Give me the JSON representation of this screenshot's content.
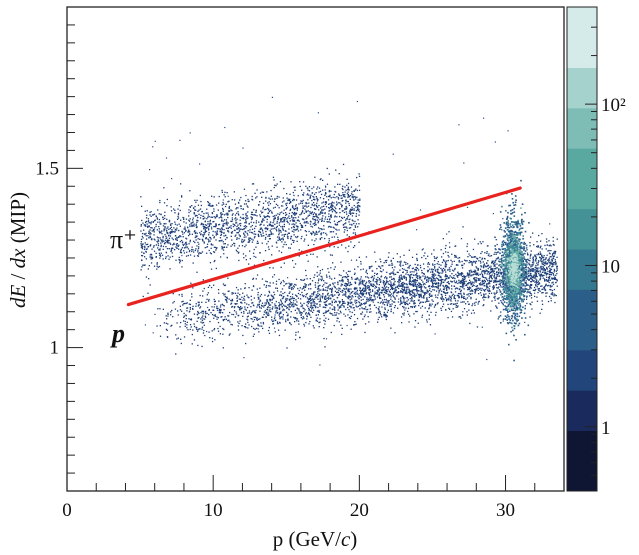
{
  "chart_data": {
    "type": "heatmap",
    "title": "",
    "xlabel_main": "p (GeV/",
    "xlabel_italic": "c",
    "xlabel_end": ")",
    "ylabel_italic_1": "dE",
    "ylabel_sep": " / ",
    "ylabel_italic_2": "dx",
    "ylabel_unit": " (MIP)",
    "xlim": [
      0,
      34
    ],
    "ylim": [
      0.6,
      1.95
    ],
    "x_ticks": [
      0,
      10,
      20,
      30
    ],
    "x_tick_labels": [
      "0",
      "10",
      "20",
      "30"
    ],
    "y_ticks": [
      1.0,
      1.5
    ],
    "y_tick_labels": [
      "1",
      "1.5"
    ],
    "colorbar": {
      "scale": "log",
      "range": [
        0.4,
        400
      ],
      "ticks": [
        1,
        10,
        100
      ],
      "tick_labels": [
        "1",
        "10",
        "10²"
      ],
      "colors": [
        "#0f1633",
        "#1a2a5c",
        "#22457c",
        "#2b5f8a",
        "#357990",
        "#449296",
        "#5aa9a1",
        "#7dbdb5",
        "#a6d2cd",
        "#d4ebea"
      ]
    },
    "annotations": [
      {
        "text": "π⁺",
        "x": 2.2,
        "y": 1.28
      },
      {
        "text": "p",
        "x": 2.2,
        "y": 0.99
      }
    ],
    "separation_line": {
      "color": "#e8231f",
      "points": [
        [
          4.2,
          1.12
        ],
        [
          31.0,
          1.445
        ]
      ]
    },
    "bands": [
      {
        "name": "",
        "x_range": [
          5.0,
          20.0
        ],
        "mean_start": 1.3,
        "mean_end": 1.39,
        "sigma": 0.045
      },
      {
        "name": "",
        "x_range": [
          6.0,
          33.5
        ],
        "mean_start": 1.08,
        "mean_end": 1.22,
        "sigma": 0.04
      },
      {
        "name": "",
        "x_range": [
          29.6,
          31.4
        ],
        "mean_start": 1.22,
        "mean_end": 1.22,
        "sigma": 0.07,
        "peak": true
      }
    ]
  }
}
